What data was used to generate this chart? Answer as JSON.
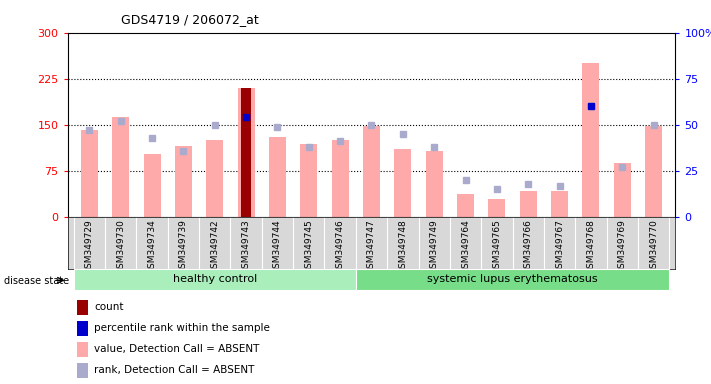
{
  "title": "GDS4719 / 206072_at",
  "samples": [
    "GSM349729",
    "GSM349730",
    "GSM349734",
    "GSM349739",
    "GSM349742",
    "GSM349743",
    "GSM349744",
    "GSM349745",
    "GSM349746",
    "GSM349747",
    "GSM349748",
    "GSM349749",
    "GSM349764",
    "GSM349765",
    "GSM349766",
    "GSM349767",
    "GSM349768",
    "GSM349769",
    "GSM349770"
  ],
  "healthy_count": 9,
  "value_absent": [
    142,
    162,
    102,
    115,
    125,
    210,
    130,
    118,
    125,
    148,
    110,
    108,
    38,
    30,
    42,
    42,
    250,
    88,
    148
  ],
  "rank_absent_pct": [
    47,
    52,
    43,
    36,
    50,
    54,
    49,
    38,
    41,
    50,
    45,
    38,
    20,
    15,
    18,
    17,
    60,
    27,
    50
  ],
  "count_value": [
    0,
    0,
    0,
    0,
    0,
    210,
    0,
    0,
    0,
    0,
    0,
    0,
    0,
    0,
    0,
    0,
    0,
    0,
    0
  ],
  "percentile_pct": [
    0,
    0,
    0,
    0,
    0,
    54,
    0,
    0,
    0,
    0,
    0,
    0,
    0,
    0,
    0,
    0,
    60,
    0,
    0
  ],
  "ylim_left": [
    0,
    300
  ],
  "ylim_right": [
    0,
    100
  ],
  "yticks_left": [
    0,
    75,
    150,
    225,
    300
  ],
  "yticks_right": [
    0,
    25,
    50,
    75,
    100
  ],
  "color_value_absent": "#ffaaaa",
  "color_rank_sq": "#aaaacc",
  "color_count": "#990000",
  "color_percentile": "#0000cc",
  "healthy_color": "#aaeebb",
  "lupus_color": "#77dd88",
  "grid_color": "#000000",
  "bg_plot": "#ffffff",
  "bg_xticklabel": "#d8d8d8"
}
